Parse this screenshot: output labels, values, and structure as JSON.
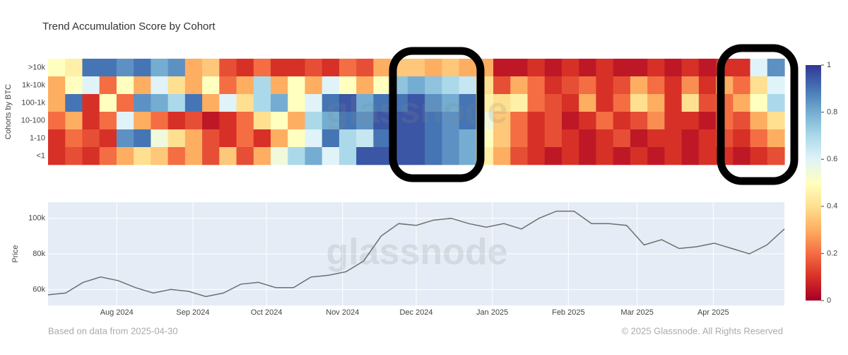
{
  "chart_data": [
    {
      "type": "heatmap",
      "title": "Trend Accumulation Score by Cohort",
      "y_label": "Cohorts by BTC",
      "xlim": [
        "2024-07-04",
        "2025-04-30"
      ],
      "y_categories": [
        ">10k",
        "1k-10k",
        "100-1k",
        "10-100",
        "1-10",
        "<1"
      ],
      "z": [
        [
          0.5,
          0.45,
          0.9,
          0.9,
          0.85,
          0.9,
          0.8,
          0.85,
          0.3,
          0.35,
          0.15,
          0.1,
          0.2,
          0.1,
          0.1,
          0.15,
          0.1,
          0.2,
          0.15,
          0.3,
          0.35,
          0.35,
          0.3,
          0.35,
          0.3,
          0.3,
          0.05,
          0.05,
          0.1,
          0.05,
          0.1,
          0.05,
          0.1,
          0.05,
          0.05,
          0.1,
          0.05,
          0.1,
          0.05,
          0.1,
          0.1,
          0.6,
          0.85
        ],
        [
          0.3,
          0.5,
          0.6,
          0.2,
          0.5,
          0.3,
          0.6,
          0.4,
          0.3,
          0.5,
          0.2,
          0.3,
          0.7,
          0.3,
          0.5,
          0.3,
          0.6,
          0.5,
          0.3,
          0.5,
          0.75,
          0.8,
          0.75,
          0.7,
          0.65,
          0.4,
          0.15,
          0.3,
          0.2,
          0.1,
          0.15,
          0.2,
          0.1,
          0.15,
          0.3,
          0.2,
          0.1,
          0.25,
          0.1,
          0.3,
          0.2,
          0.4,
          0.6
        ],
        [
          0.3,
          0.9,
          0.1,
          0.5,
          0.2,
          0.85,
          0.8,
          0.7,
          0.9,
          0.3,
          0.6,
          0.4,
          0.7,
          0.8,
          0.5,
          0.6,
          0.9,
          0.95,
          0.8,
          0.9,
          0.9,
          0.95,
          0.85,
          0.8,
          0.9,
          0.45,
          0.4,
          0.45,
          0.2,
          0.15,
          0.1,
          0.3,
          0.1,
          0.2,
          0.4,
          0.3,
          0.1,
          0.4,
          0.15,
          0.2,
          0.3,
          0.5,
          0.7
        ],
        [
          0.2,
          0.3,
          0.1,
          0.2,
          0.6,
          0.3,
          0.2,
          0.1,
          0.15,
          0.05,
          0.1,
          0.2,
          0.4,
          0.5,
          0.3,
          0.7,
          0.8,
          0.9,
          0.85,
          0.95,
          0.95,
          0.95,
          0.9,
          0.85,
          0.9,
          0.55,
          0.35,
          0.2,
          0.1,
          0.15,
          0.05,
          0.1,
          0.2,
          0.1,
          0.15,
          0.25,
          0.1,
          0.1,
          0.05,
          0.2,
          0.15,
          0.3,
          0.4
        ],
        [
          0.1,
          0.2,
          0.15,
          0.1,
          0.85,
          0.9,
          0.55,
          0.4,
          0.3,
          0.15,
          0.1,
          0.2,
          0.1,
          0.3,
          0.5,
          0.6,
          0.9,
          0.7,
          0.65,
          0.9,
          0.95,
          0.95,
          0.9,
          0.85,
          0.8,
          0.5,
          0.35,
          0.2,
          0.1,
          0.15,
          0.1,
          0.05,
          0.1,
          0.15,
          0.05,
          0.1,
          0.1,
          0.05,
          0.1,
          0.15,
          0.1,
          0.2,
          0.3
        ],
        [
          0.1,
          0.15,
          0.1,
          0.2,
          0.3,
          0.4,
          0.35,
          0.2,
          0.3,
          0.15,
          0.35,
          0.15,
          0.3,
          0.55,
          0.7,
          0.8,
          0.6,
          0.7,
          0.95,
          0.95,
          0.95,
          0.95,
          0.9,
          0.85,
          0.8,
          0.45,
          0.3,
          0.15,
          0.1,
          0.05,
          0.1,
          0.05,
          0.1,
          0.05,
          0.1,
          0.05,
          0.1,
          0.05,
          0.1,
          0.1,
          0.05,
          0.1,
          0.15
        ]
      ],
      "zlim": [
        0,
        1
      ],
      "zticks": [
        0,
        0.2,
        0.4,
        0.6,
        0.8,
        1
      ],
      "colorscale": [
        "#a50026",
        "#d73027",
        "#f46d43",
        "#fdae61",
        "#fee090",
        "#ffffbf",
        "#e0f3f8",
        "#abd9e9",
        "#74add1",
        "#4575b4",
        "#313695"
      ]
    },
    {
      "type": "line",
      "y_label": "Price",
      "color": "#6e6e6e",
      "grid": true,
      "xlim": [
        "2024-07-04",
        "2025-04-30"
      ],
      "xticks": [
        {
          "value": "2024-08-01",
          "label": "Aug 2024"
        },
        {
          "value": "2024-09-01",
          "label": "Sep 2024"
        },
        {
          "value": "2024-10-01",
          "label": "Oct 2024"
        },
        {
          "value": "2024-11-01",
          "label": "Nov 2024"
        },
        {
          "value": "2024-12-01",
          "label": "Dec 2024"
        },
        {
          "value": "2025-01-01",
          "label": "Jan 2025"
        },
        {
          "value": "2025-02-01",
          "label": "Feb 2025"
        },
        {
          "value": "2025-03-01",
          "label": "Mar 2025"
        },
        {
          "value": "2025-04-01",
          "label": "Apr 2025"
        }
      ],
      "ylim": [
        51000,
        109000
      ],
      "yticks": [
        {
          "value": 60000,
          "label": "60k"
        },
        {
          "value": 80000,
          "label": "80k"
        },
        {
          "value": 100000,
          "label": "100k"
        }
      ],
      "values": [
        57000,
        58000,
        64000,
        67000,
        65000,
        61000,
        58000,
        60000,
        59000,
        56000,
        58000,
        63000,
        64000,
        61000,
        61000,
        67000,
        68000,
        70000,
        76000,
        90000,
        97000,
        96000,
        99000,
        100000,
        97000,
        95000,
        97000,
        94000,
        100000,
        104000,
        104000,
        97000,
        97000,
        96000,
        85000,
        88000,
        83000,
        84000,
        86000,
        83000,
        80000,
        85000,
        94000
      ]
    }
  ],
  "watermark": "glassnode",
  "footer": {
    "left": "Based on data from 2025-04-30",
    "right": "© 2025 Glassnode. All Rights Reserved"
  }
}
